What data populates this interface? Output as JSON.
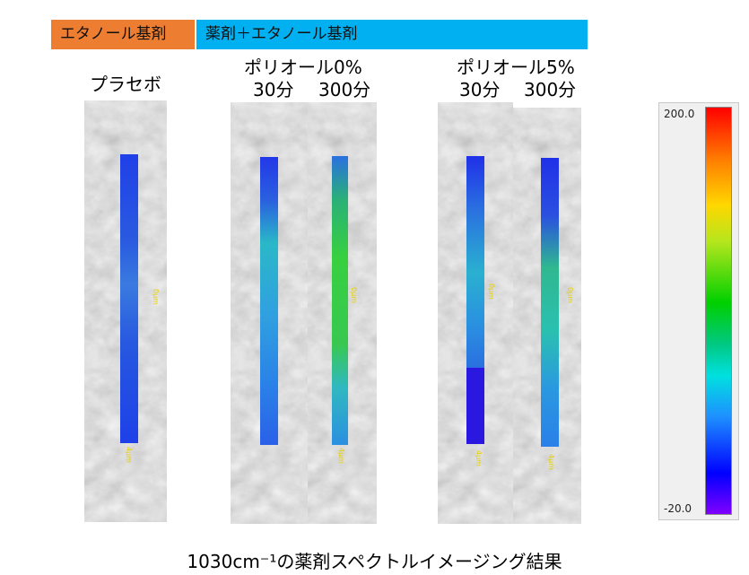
{
  "header": {
    "base_label": "エタノール基剤",
    "drug_label": "薬剤＋エタノール基剤"
  },
  "groups": {
    "placebo": {
      "title": "プラセボ"
    },
    "polyol0": {
      "title": "ポリオール0%",
      "time_30": "30分",
      "time_300": "300分"
    },
    "polyol5": {
      "title": "ポリオール5%",
      "time_30": "30分",
      "time_300": "300分"
    }
  },
  "markers": {
    "top": "0μm",
    "bottom": "4μm"
  },
  "colorbar": {
    "max": "200.0",
    "min": "-20.0"
  },
  "caption": "1030cm⁻¹の薬剤スペクトルイメージング結果",
  "colors": {
    "orange": "#ED7D31",
    "blue": "#00B0F0"
  }
}
